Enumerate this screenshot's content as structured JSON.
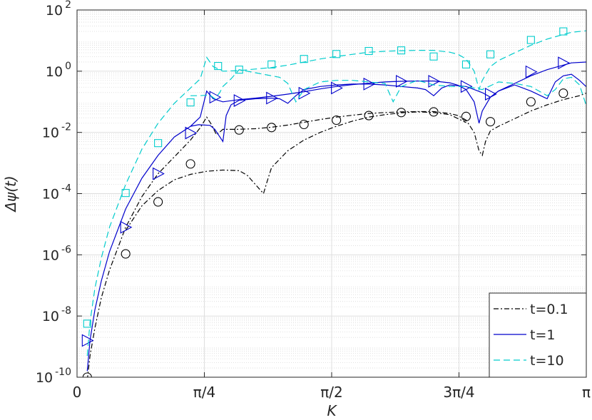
{
  "chart_data": {
    "type": "line",
    "xlabel": "K",
    "ylabel": "Δψ(t)",
    "xlim": [
      0,
      3.14159
    ],
    "ylim_log10": [
      -10,
      2
    ],
    "yscale": "log",
    "grid": true,
    "legend_position": "bottom-right",
    "x_ticks": [
      {
        "value": 0,
        "label": "0"
      },
      {
        "value": 0.7854,
        "label": "π/4"
      },
      {
        "value": 1.5708,
        "label": "π/2"
      },
      {
        "value": 2.3562,
        "label": "3π/4"
      },
      {
        "value": 3.14159,
        "label": "π"
      }
    ],
    "y_ticks": [
      {
        "exp": 2,
        "base": "10",
        "sup": "2"
      },
      {
        "exp": 0,
        "base": "10",
        "sup": "0"
      },
      {
        "exp": -2,
        "base": "10",
        "sup": "-2"
      },
      {
        "exp": -4,
        "base": "10",
        "sup": "-4"
      },
      {
        "exp": -6,
        "base": "10",
        "sup": "-6"
      },
      {
        "exp": -8,
        "base": "10",
        "sup": "-8"
      },
      {
        "exp": -10,
        "base": "10",
        "sup": "-10"
      }
    ],
    "series": [
      {
        "name": "t=0.1",
        "color": "#000000",
        "dash": "7,3,2,3",
        "marker": "circle",
        "main_log10": [
          [
            0.063,
            -10.1
          ],
          [
            0.08,
            -9.3
          ],
          [
            0.11,
            -8.4
          ],
          [
            0.15,
            -7.4
          ],
          [
            0.2,
            -6.5
          ],
          [
            0.3,
            -5.1
          ],
          [
            0.4,
            -4.1
          ],
          [
            0.5,
            -3.35
          ],
          [
            0.6,
            -2.8
          ],
          [
            0.7,
            -2.25
          ],
          [
            0.76,
            -1.85
          ],
          [
            0.8,
            -1.5
          ],
          [
            0.83,
            -1.75
          ],
          [
            0.86,
            -2.08
          ],
          [
            0.9,
            -1.9
          ],
          [
            0.98,
            -1.9
          ],
          [
            1.1,
            -1.88
          ],
          [
            1.2,
            -1.83
          ],
          [
            1.3,
            -1.76
          ],
          [
            1.4,
            -1.67
          ],
          [
            1.5,
            -1.58
          ],
          [
            1.6,
            -1.5
          ],
          [
            1.7,
            -1.44
          ],
          [
            1.8,
            -1.38
          ],
          [
            1.9,
            -1.35
          ],
          [
            2.0,
            -1.33
          ],
          [
            2.1,
            -1.32
          ],
          [
            2.2,
            -1.32
          ],
          [
            2.3,
            -1.38
          ],
          [
            2.35,
            -1.45
          ],
          [
            2.4,
            -1.6
          ],
          [
            2.45,
            -2.0
          ],
          [
            2.48,
            -2.6
          ],
          [
            2.5,
            -2.75
          ],
          [
            2.52,
            -2.3
          ],
          [
            2.55,
            -1.95
          ],
          [
            2.6,
            -1.8
          ],
          [
            2.7,
            -1.55
          ],
          [
            2.8,
            -1.3
          ],
          [
            2.9,
            -1.1
          ],
          [
            3.0,
            -0.93
          ],
          [
            3.1,
            -0.8
          ],
          [
            3.14,
            -0.72
          ]
        ],
        "secondary_log10": [
          [
            0.3,
            -5.2
          ],
          [
            0.4,
            -4.4
          ],
          [
            0.5,
            -3.9
          ],
          [
            0.6,
            -3.55
          ],
          [
            0.7,
            -3.37
          ],
          [
            0.8,
            -3.27
          ],
          [
            0.9,
            -3.23
          ],
          [
            1.0,
            -3.25
          ],
          [
            1.05,
            -3.4
          ],
          [
            1.1,
            -3.7
          ],
          [
            1.15,
            -4.0
          ],
          [
            1.17,
            -3.65
          ],
          [
            1.2,
            -3.15
          ],
          [
            1.3,
            -2.6
          ],
          [
            1.4,
            -2.25
          ],
          [
            1.5,
            -2.0
          ],
          [
            1.6,
            -1.8
          ],
          [
            1.7,
            -1.63
          ],
          [
            1.8,
            -1.5
          ],
          [
            1.9,
            -1.42
          ],
          [
            2.0,
            -1.36
          ],
          [
            2.1,
            -1.33
          ],
          [
            2.2,
            -1.35
          ],
          [
            2.3,
            -1.42
          ],
          [
            2.4,
            -1.68
          ]
        ],
        "markers": [
          [
            0.063,
            -10.0
          ],
          [
            0.3,
            -5.97
          ],
          [
            0.5,
            -4.27
          ],
          [
            0.7,
            -3.03
          ],
          [
            1.0,
            -1.92
          ],
          [
            1.2,
            -1.84
          ],
          [
            1.4,
            -1.74
          ],
          [
            1.6,
            -1.6
          ],
          [
            1.8,
            -1.45
          ],
          [
            2.0,
            -1.35
          ],
          [
            2.2,
            -1.33
          ],
          [
            2.4,
            -1.48
          ],
          [
            2.55,
            -1.65
          ],
          [
            2.8,
            -1.0
          ],
          [
            3.0,
            -0.72
          ]
        ]
      },
      {
        "name": "t=1",
        "color": "#0000cc",
        "dash": "",
        "marker": "triangle-right",
        "main_log10": [
          [
            0.063,
            -9.8
          ],
          [
            0.08,
            -8.8
          ],
          [
            0.11,
            -7.8
          ],
          [
            0.15,
            -6.85
          ],
          [
            0.2,
            -5.9
          ],
          [
            0.3,
            -4.5
          ],
          [
            0.4,
            -3.5
          ],
          [
            0.5,
            -2.75
          ],
          [
            0.6,
            -2.15
          ],
          [
            0.7,
            -1.8
          ],
          [
            0.76,
            -1.5
          ],
          [
            0.8,
            -0.65
          ],
          [
            0.84,
            -0.9
          ],
          [
            0.9,
            -1.0
          ],
          [
            1.0,
            -0.93
          ],
          [
            1.1,
            -0.88
          ],
          [
            1.2,
            -0.82
          ],
          [
            1.3,
            -0.75
          ],
          [
            1.4,
            -0.67
          ],
          [
            1.5,
            -0.58
          ],
          [
            1.6,
            -0.5
          ],
          [
            1.7,
            -0.44
          ],
          [
            1.8,
            -0.39
          ],
          [
            1.9,
            -0.35
          ],
          [
            2.0,
            -0.33
          ],
          [
            2.1,
            -0.32
          ],
          [
            2.2,
            -0.32
          ],
          [
            2.3,
            -0.38
          ],
          [
            2.35,
            -0.46
          ],
          [
            2.4,
            -0.6
          ],
          [
            2.45,
            -1.0
          ],
          [
            2.48,
            -1.7
          ],
          [
            2.5,
            -1.3
          ],
          [
            2.55,
            -0.85
          ],
          [
            2.6,
            -0.65
          ],
          [
            2.7,
            -0.4
          ],
          [
            2.8,
            -0.15
          ],
          [
            2.9,
            0.05
          ],
          [
            3.0,
            0.2
          ],
          [
            3.05,
            0.27
          ],
          [
            3.14,
            0.3
          ]
        ],
        "secondary_log10": [
          [
            0.7,
            -1.8
          ],
          [
            0.75,
            -1.75
          ],
          [
            0.82,
            -1.77
          ],
          [
            0.85,
            -1.9
          ],
          [
            0.9,
            -2.3
          ],
          [
            0.92,
            -1.45
          ],
          [
            0.95,
            -1.1
          ],
          [
            1.0,
            -0.95
          ],
          [
            1.1,
            -0.9
          ],
          [
            1.2,
            -0.88
          ],
          [
            1.25,
            -0.9
          ],
          [
            1.3,
            -1.05
          ],
          [
            1.35,
            -0.8
          ],
          [
            1.4,
            -0.6
          ],
          [
            1.5,
            -0.5
          ],
          [
            1.6,
            -0.45
          ],
          [
            1.7,
            -0.42
          ],
          [
            1.8,
            -0.42
          ],
          [
            1.9,
            -0.45
          ],
          [
            2.0,
            -0.5
          ],
          [
            2.1,
            -0.55
          ],
          [
            2.15,
            -0.6
          ],
          [
            2.2,
            -0.8
          ],
          [
            2.25,
            -0.55
          ],
          [
            2.3,
            -0.45
          ],
          [
            2.4,
            -0.5
          ],
          [
            2.5,
            -0.7
          ],
          [
            2.55,
            -0.85
          ],
          [
            2.6,
            -0.65
          ],
          [
            2.7,
            -0.45
          ],
          [
            2.8,
            -0.65
          ],
          [
            2.9,
            -0.9
          ],
          [
            2.95,
            -0.35
          ],
          [
            3.0,
            -0.15
          ],
          [
            3.05,
            -0.1
          ],
          [
            3.1,
            -0.3
          ],
          [
            3.14,
            -0.5
          ]
        ],
        "markers": [
          [
            0.063,
            -8.8
          ],
          [
            0.3,
            -5.1
          ],
          [
            0.5,
            -3.35
          ],
          [
            0.7,
            -2.02
          ],
          [
            0.85,
            -0.85
          ],
          [
            1.0,
            -0.96
          ],
          [
            1.2,
            -0.88
          ],
          [
            1.4,
            -0.72
          ],
          [
            1.6,
            -0.55
          ],
          [
            1.8,
            -0.42
          ],
          [
            2.0,
            -0.33
          ],
          [
            2.2,
            -0.33
          ],
          [
            2.4,
            -0.5
          ],
          [
            2.55,
            -0.75
          ],
          [
            2.8,
            -0.02
          ],
          [
            3.0,
            0.27
          ]
        ]
      },
      {
        "name": "t=10",
        "color": "#00cccc",
        "dash": "9,5",
        "marker": "square",
        "main_log10": [
          [
            0.063,
            -9.3
          ],
          [
            0.08,
            -8.2
          ],
          [
            0.11,
            -7.1
          ],
          [
            0.15,
            -6.1
          ],
          [
            0.2,
            -5.1
          ],
          [
            0.3,
            -3.7
          ],
          [
            0.4,
            -2.55
          ],
          [
            0.5,
            -1.7
          ],
          [
            0.6,
            -1.05
          ],
          [
            0.7,
            -0.55
          ],
          [
            0.76,
            -0.25
          ],
          [
            0.8,
            0.45
          ],
          [
            0.84,
            0.15
          ],
          [
            0.9,
            0.0
          ],
          [
            1.0,
            0.02
          ],
          [
            1.1,
            0.07
          ],
          [
            1.2,
            0.12
          ],
          [
            1.3,
            0.2
          ],
          [
            1.4,
            0.3
          ],
          [
            1.5,
            0.4
          ],
          [
            1.6,
            0.48
          ],
          [
            1.7,
            0.55
          ],
          [
            1.8,
            0.62
          ],
          [
            1.9,
            0.65
          ],
          [
            2.0,
            0.67
          ],
          [
            2.1,
            0.68
          ],
          [
            2.2,
            0.68
          ],
          [
            2.3,
            0.62
          ],
          [
            2.35,
            0.55
          ],
          [
            2.4,
            0.4
          ],
          [
            2.45,
            0.0
          ],
          [
            2.48,
            -0.6
          ],
          [
            2.5,
            -0.3
          ],
          [
            2.55,
            0.15
          ],
          [
            2.6,
            0.35
          ],
          [
            2.7,
            0.6
          ],
          [
            2.8,
            0.85
          ],
          [
            2.9,
            1.05
          ],
          [
            3.0,
            1.2
          ],
          [
            3.05,
            1.27
          ],
          [
            3.14,
            1.32
          ]
        ],
        "secondary_log10": [
          [
            0.7,
            -0.8
          ],
          [
            0.75,
            -0.8
          ],
          [
            0.82,
            -0.78
          ],
          [
            0.85,
            -0.9
          ],
          [
            0.88,
            -0.7
          ],
          [
            0.9,
            -0.5
          ],
          [
            0.95,
            -0.25
          ],
          [
            1.0,
            0.05
          ],
          [
            1.1,
            -0.05
          ],
          [
            1.2,
            -0.15
          ],
          [
            1.25,
            -0.2
          ],
          [
            1.3,
            -0.4
          ],
          [
            1.35,
            -1.0
          ],
          [
            1.4,
            -0.6
          ],
          [
            1.5,
            -0.35
          ],
          [
            1.6,
            -0.3
          ],
          [
            1.7,
            -0.3
          ],
          [
            1.8,
            -0.35
          ],
          [
            1.9,
            -0.4
          ],
          [
            1.95,
            -1.0
          ],
          [
            2.0,
            -0.5
          ],
          [
            2.1,
            -0.3
          ],
          [
            2.2,
            -0.45
          ],
          [
            2.3,
            -0.5
          ],
          [
            2.4,
            -0.5
          ],
          [
            2.5,
            -0.6
          ],
          [
            2.6,
            -0.35
          ],
          [
            2.7,
            -0.4
          ],
          [
            2.8,
            -0.5
          ],
          [
            2.9,
            -0.8
          ],
          [
            2.95,
            -0.6
          ],
          [
            3.0,
            -0.25
          ],
          [
            3.05,
            -0.2
          ],
          [
            3.1,
            -0.45
          ],
          [
            3.14,
            -1.1
          ]
        ],
        "markers": [
          [
            0.063,
            -8.25
          ],
          [
            0.3,
            -3.98
          ],
          [
            0.5,
            -2.35
          ],
          [
            0.7,
            -1.02
          ],
          [
            0.87,
            0.17
          ],
          [
            1.0,
            0.05
          ],
          [
            1.2,
            0.22
          ],
          [
            1.4,
            0.4
          ],
          [
            1.6,
            0.56
          ],
          [
            1.8,
            0.66
          ],
          [
            2.0,
            0.68
          ],
          [
            2.2,
            0.48
          ],
          [
            2.4,
            0.22
          ],
          [
            2.55,
            0.55
          ],
          [
            2.8,
            1.02
          ],
          [
            3.0,
            1.3
          ]
        ]
      }
    ]
  }
}
